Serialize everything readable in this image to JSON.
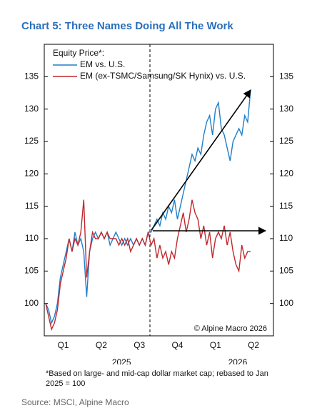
{
  "chart_data": {
    "type": "line",
    "title": "Chart 5: Three Names Doing All The Work",
    "legend_title": "Equity Price*:",
    "categories": [
      null,
      null,
      null,
      null,
      null,
      null,
      "Q1",
      null,
      null,
      null,
      null,
      null,
      null,
      null,
      null,
      null,
      null,
      null,
      null,
      "Q2",
      null,
      null,
      null,
      null,
      null,
      null,
      null,
      null,
      null,
      null,
      null,
      null,
      "Q3",
      null,
      null,
      null,
      null,
      null,
      null,
      null,
      null,
      null,
      null,
      null,
      null,
      "Q4",
      null,
      null,
      null,
      null,
      null,
      null,
      null,
      null,
      null,
      null,
      null,
      null,
      "Q1",
      null,
      null,
      null,
      null,
      null,
      null,
      null,
      null,
      null,
      null,
      null,
      null,
      "Q2",
      null,
      null,
      null,
      null,
      null,
      null
    ],
    "year_labels": [
      "2025",
      "2026"
    ],
    "series": [
      {
        "name": "EM vs. U.S.",
        "color": "#1f7fc9",
        "values": [
          100,
          99,
          97,
          98,
          100,
          104,
          106,
          108,
          110,
          108,
          111,
          109,
          110,
          108,
          101,
          108,
          110,
          111,
          110,
          111,
          110,
          111,
          109,
          110,
          111,
          110,
          109,
          110,
          109,
          110,
          109,
          110,
          109,
          110,
          109,
          111,
          111,
          112,
          113,
          112,
          114,
          113,
          115,
          114,
          116,
          113,
          115,
          117,
          119,
          121,
          123,
          122,
          124,
          123,
          126,
          128,
          129,
          126,
          130,
          131,
          127,
          126,
          124,
          122,
          125,
          126,
          127,
          126,
          129,
          128,
          133,
          null,
          null,
          null,
          null,
          null,
          null,
          null
        ]
      },
      {
        "name": "EM (ex-TSMC/Samsung/SK Hynix) vs. U.S.",
        "color": "#c0282e",
        "values": [
          100,
          98,
          96,
          97,
          99,
          103,
          105,
          107,
          110,
          108,
          110,
          109,
          111,
          116,
          104,
          108,
          111,
          110,
          110,
          111,
          110,
          111,
          110,
          110,
          110,
          109,
          110,
          109,
          110,
          108,
          109,
          110,
          109,
          110,
          109,
          111,
          109,
          110,
          107,
          109,
          107,
          108,
          106,
          108,
          107,
          110,
          112,
          114,
          111,
          113,
          116,
          114,
          113,
          110,
          112,
          109,
          111,
          107,
          110,
          111,
          110,
          112,
          109,
          111,
          108,
          106,
          105,
          109,
          107,
          108,
          108,
          null,
          null,
          null,
          null,
          null,
          null,
          null
        ]
      }
    ],
    "ylim": [
      95,
      140
    ],
    "yticks": [
      100,
      105,
      110,
      115,
      120,
      125,
      130,
      135
    ],
    "annotation": "© Alpine Macro 2026",
    "footnote": "*Based on large- and mid-cap dollar market cap; rebased to Jan 2025 = 100",
    "source": "Source: MSCI, Alpine Macro"
  }
}
